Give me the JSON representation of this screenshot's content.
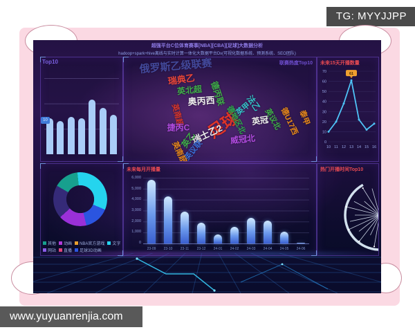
{
  "frame": {
    "tg_badge": "TG: MYYJJPP",
    "site_bar": "www.yuyuanrenjia.com"
  },
  "dashboard": {
    "header_line1": "超强平台C位体育赛事[NBA][CBA][足球]大数据分析",
    "header_line2": "hadoop+spark+hive离线与实时计算一体化大数据平台Dv(可视化数据系统、预测系统、SEO团队)",
    "panels": {
      "hot_league": {
        "title": "Top10",
        "badge": "10"
      },
      "wordcloud": {
        "header": "联赛热度Top10"
      },
      "next15": {
        "title": "未来15天开播数量"
      },
      "monthly": {
        "title": "未来每月开播量"
      },
      "hot_time": {
        "title": "热门开播时间Top10"
      }
    }
  },
  "chart_data": [
    {
      "id": "hot-league-bar",
      "type": "bar",
      "title": "Top10",
      "categories": [
        "",
        "",
        "",
        "",
        "",
        "",
        ""
      ],
      "values": [
        47,
        44,
        49,
        47,
        72,
        61,
        52
      ],
      "ylim": [
        0,
        100
      ],
      "badge_label": "10",
      "bar_color": "#a9cdf8"
    },
    {
      "id": "league-wordcloud",
      "type": "wordcloud",
      "header": "联赛热度Top10",
      "words": [
        {
          "text": "俄罗斯乙级联赛",
          "x": 75,
          "y": 12,
          "size": 15,
          "rot": -5,
          "color": "#4a56b0",
          "opacity": 0.8
        },
        {
          "text": "瑞典乙",
          "x": 83,
          "y": 31,
          "size": 13,
          "rot": -8,
          "color": "#e8463a",
          "opacity": 1
        },
        {
          "text": "英北超",
          "x": 95,
          "y": 47,
          "size": 12,
          "rot": -6,
          "color": "#3fae49",
          "opacity": 1
        },
        {
          "text": "奥丙西",
          "x": 112,
          "y": 62,
          "size": 13,
          "rot": -4,
          "color": "#eeeeee",
          "opacity": 1
        },
        {
          "text": "德丙联",
          "x": 136,
          "y": 52,
          "size": 12,
          "rot": 72,
          "color": "#3fae49",
          "opacity": 1
        },
        {
          "text": "英南超",
          "x": 78,
          "y": 83,
          "size": 11,
          "rot": 75,
          "color": "#d8362c",
          "opacity": 1
        },
        {
          "text": "捷丙C",
          "x": 79,
          "y": 101,
          "size": 12,
          "rot": 0,
          "color": "#b14be0",
          "opacity": 1
        },
        {
          "text": "足球",
          "x": 142,
          "y": 96,
          "size": 23,
          "rot": -35,
          "color": "#e03428",
          "opacity": 1
        },
        {
          "text": "德地区北",
          "x": 163,
          "y": 90,
          "size": 11,
          "rot": 62,
          "color": "#2fa84f",
          "opacity": 1
        },
        {
          "text": "英甲",
          "x": 172,
          "y": 74,
          "size": 11,
          "rot": -40,
          "color": "#35c2c9",
          "opacity": 1
        },
        {
          "text": "法乙",
          "x": 188,
          "y": 66,
          "size": 12,
          "rot": 55,
          "color": "#35c2c9",
          "opacity": 1
        },
        {
          "text": "英冠",
          "x": 197,
          "y": 91,
          "size": 12,
          "rot": -8,
          "color": "#eeeeee",
          "opacity": 1
        },
        {
          "text": "英议北",
          "x": 216,
          "y": 89,
          "size": 11,
          "rot": 60,
          "color": "#3fae49",
          "opacity": 1
        },
        {
          "text": "德U17西",
          "x": 240,
          "y": 92,
          "size": 11,
          "rot": 65,
          "color": "#e8891b",
          "opacity": 1
        },
        {
          "text": "泰甲",
          "x": 262,
          "y": 87,
          "size": 11,
          "rot": 70,
          "color": "#e8891b",
          "opacity": 1
        },
        {
          "text": "瑞士乙2",
          "x": 120,
          "y": 110,
          "size": 13,
          "rot": -25,
          "color": "#eeeeee",
          "opacity": 1
        },
        {
          "text": "英乙",
          "x": 93,
          "y": 119,
          "size": 12,
          "rot": -55,
          "color": "#3fae49",
          "opacity": 1
        },
        {
          "text": "威冠北",
          "x": 172,
          "y": 118,
          "size": 12,
          "rot": -6,
          "color": "#b14be0",
          "opacity": 1
        },
        {
          "text": "英议联",
          "x": 100,
          "y": 134,
          "size": 11,
          "rot": -50,
          "color": "#3a6fd8",
          "opacity": 1
        },
        {
          "text": "英南超中",
          "x": 83,
          "y": 142,
          "size": 11,
          "rot": 65,
          "color": "#e8891b",
          "opacity": 1
        }
      ]
    },
    {
      "id": "next15-line",
      "type": "line",
      "title": "未来15天开播数量",
      "x": [
        10,
        11,
        12,
        13,
        14,
        15,
        16
      ],
      "values": [
        10,
        20,
        38,
        61,
        22,
        12,
        18
      ],
      "ylim": [
        0,
        70
      ],
      "yticks": [
        0,
        10,
        20,
        30,
        40,
        50,
        60,
        70
      ],
      "peak_label": "61",
      "line_color": "#4fc3f7",
      "peak_label_color": "#f0a030"
    },
    {
      "id": "stream-type-donut",
      "type": "pie",
      "slices": [
        {
          "value": 15,
          "color": "#17a08e"
        },
        {
          "value": 33,
          "color": "#25d4ee"
        },
        {
          "value": 15,
          "color": "#2b55e0"
        },
        {
          "value": 17,
          "color": "#9a30d8"
        },
        {
          "value": 20,
          "color": "#352a78"
        }
      ],
      "start_deg": -60,
      "legend": [
        {
          "label": "其他",
          "color": "#17a08e"
        },
        {
          "label": "动画",
          "color": "#b03ad9"
        },
        {
          "label": "NBA官方游戏",
          "color": "#e8a030"
        },
        {
          "label": "文字",
          "color": "#25d4ee"
        },
        {
          "label": "网站",
          "color": "#8a5ce8"
        },
        {
          "label": "直播",
          "color": "#e0457b"
        },
        {
          "label": "足球3D动画",
          "color": "#2b55e0"
        }
      ]
    },
    {
      "id": "monthly-bar",
      "type": "bar",
      "title": "未来每月开播量",
      "categories": [
        "23-09",
        "23-10",
        "23-11",
        "23-12",
        "24-01",
        "24-02",
        "24-03",
        "24-04",
        "24-05",
        "24-06"
      ],
      "values": [
        5800,
        4300,
        2900,
        1900,
        800,
        1500,
        2350,
        2100,
        1100,
        60
      ],
      "ylim": [
        0,
        6000
      ],
      "ytick_labels": [
        "6,000",
        "5,000",
        "4,000",
        "3,000",
        "2,000",
        "1,000",
        "0"
      ]
    },
    {
      "id": "hot-time-wheel",
      "type": "polar",
      "title": "热门开播时间Top10",
      "center": {
        "x": 90,
        "y": 74
      },
      "ring_radius": 50,
      "spokes": [
        {
          "angle": 100,
          "len": 46
        },
        {
          "angle": 115,
          "len": 32
        },
        {
          "angle": 128,
          "len": 48
        },
        {
          "angle": 142,
          "len": 38
        },
        {
          "angle": 155,
          "len": 50
        },
        {
          "angle": 168,
          "len": 44
        },
        {
          "angle": 180,
          "len": 36
        },
        {
          "angle": 194,
          "len": 50
        },
        {
          "angle": 208,
          "len": 42
        },
        {
          "angle": 222,
          "len": 30
        },
        {
          "angle": 238,
          "len": 46
        },
        {
          "angle": 254,
          "len": 40
        }
      ]
    }
  ]
}
